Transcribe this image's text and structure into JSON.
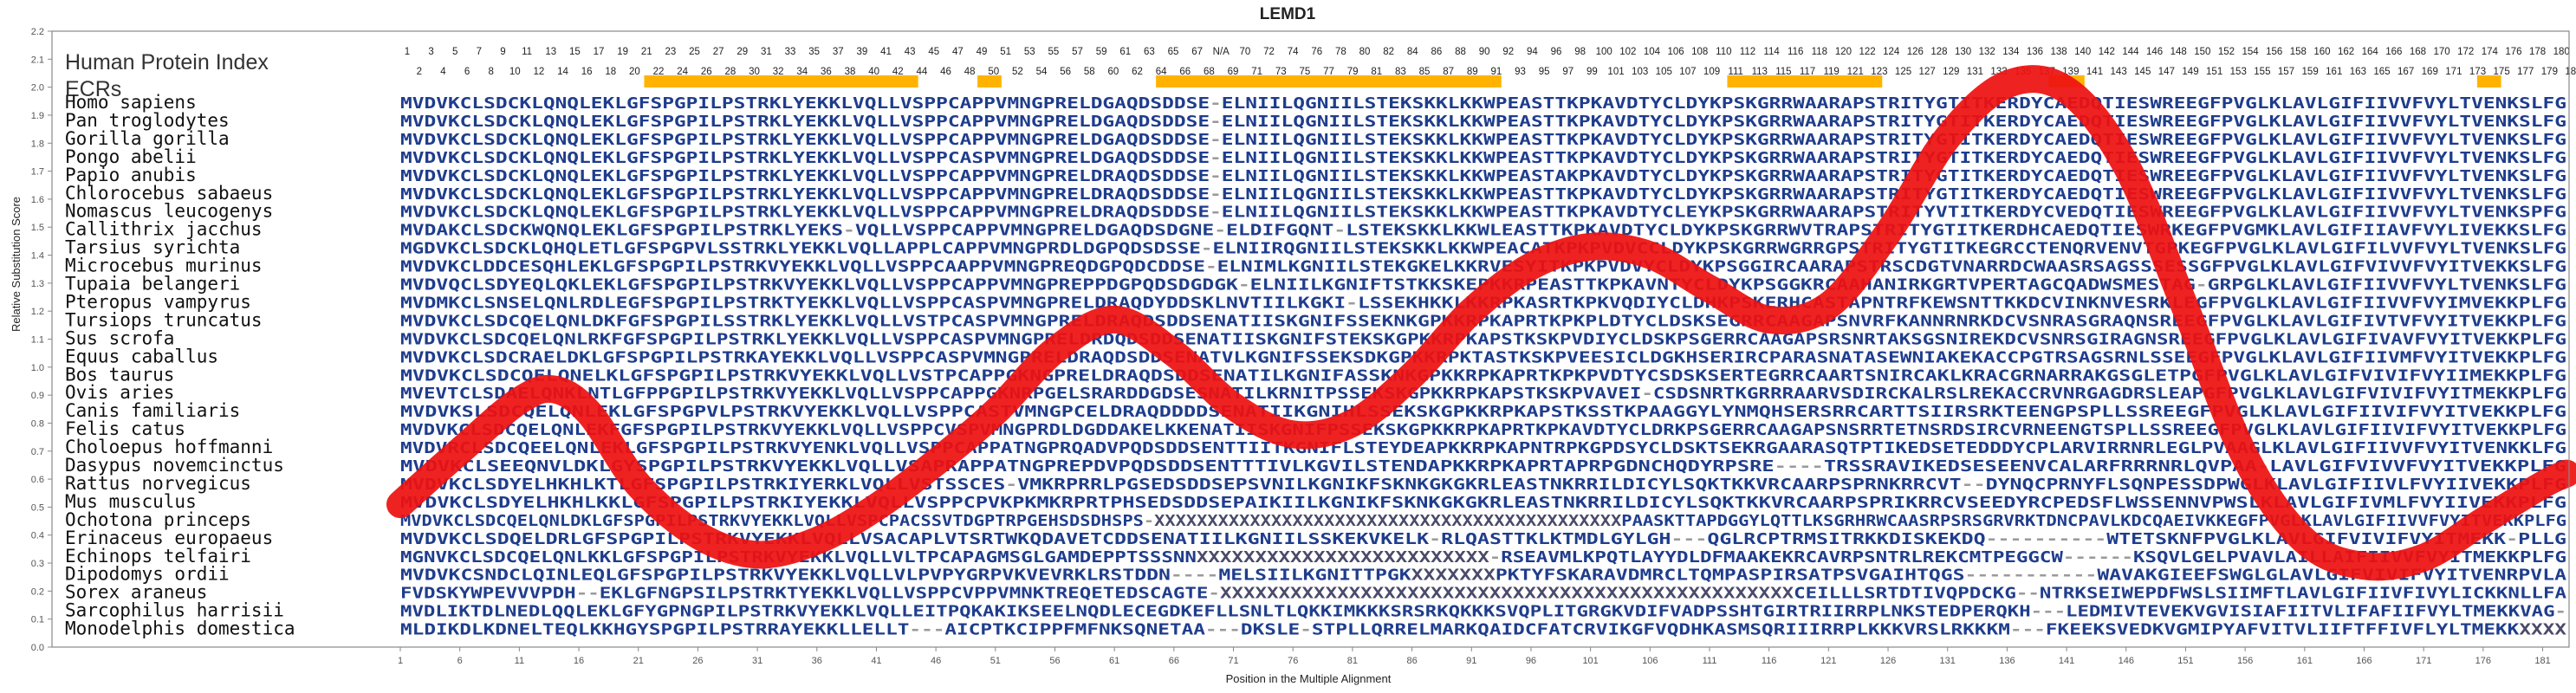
{
  "chart_data": {
    "type": "line",
    "title": "LEMD1",
    "xlabel": "Position in the Multiple Alignment",
    "ylabel": "Relative Substitution Score",
    "xlim": [
      1,
      183
    ],
    "ylim": [
      0.0,
      2.2
    ],
    "yticks": [
      "0.0",
      "0.1",
      "0.2",
      "0.3",
      "0.4",
      "0.5",
      "0.6",
      "0.7",
      "0.8",
      "0.9",
      "1.0",
      "1.1",
      "1.2",
      "1.3",
      "1.4",
      "1.5",
      "1.6",
      "1.7",
      "1.8",
      "1.9",
      "2.0",
      "2.1",
      "2.2"
    ],
    "xticks": [
      1,
      6,
      11,
      16,
      21,
      26,
      31,
      36,
      41,
      46,
      51,
      56,
      61,
      66,
      71,
      76,
      81,
      86,
      91,
      96,
      101,
      106,
      111,
      116,
      121,
      126,
      131,
      136,
      141,
      146,
      151,
      156,
      161,
      166,
      171,
      176,
      181
    ],
    "grid": false,
    "series": [
      {
        "color": "#ee1111",
        "x": [
          1,
          6,
          11,
          14,
          17,
          21,
          26,
          31,
          36,
          41,
          46,
          51,
          56,
          61,
          66,
          71,
          76,
          81,
          86,
          91,
          96,
          101,
          106,
          111,
          116,
          121,
          126,
          131,
          136,
          141,
          146,
          151,
          156,
          161,
          166,
          171,
          176,
          181,
          183
        ],
        "y": [
          0.51,
          0.7,
          0.88,
          0.92,
          0.83,
          0.58,
          0.4,
          0.33,
          0.38,
          0.5,
          0.66,
          0.84,
          1.06,
          1.17,
          1.05,
          0.86,
          0.76,
          0.8,
          0.97,
          1.2,
          1.36,
          1.43,
          1.4,
          1.28,
          1.17,
          1.22,
          1.48,
          1.82,
          2.01,
          1.99,
          1.72,
          1.21,
          0.68,
          0.38,
          0.29,
          0.32,
          0.45,
          0.58,
          0.62
        ]
      }
    ],
    "highlight_bars": [
      [
        22,
        44
      ],
      [
        50,
        51
      ],
      [
        65,
        93
      ],
      [
        113,
        125
      ],
      [
        140,
        142
      ],
      [
        176,
        177
      ]
    ],
    "highlight_color": "#ffb300"
  },
  "labels": {
    "human_protein_index": "Human Protein Index",
    "ecrs": "ECRs"
  },
  "positions_top": [
    "1",
    "3",
    "5",
    "7",
    "9",
    "11",
    "13",
    "15",
    "17",
    "19",
    "21",
    "23",
    "25",
    "27",
    "29",
    "31",
    "33",
    "35",
    "37",
    "39",
    "41",
    "43",
    "45",
    "47",
    "49",
    "51",
    "53",
    "55",
    "57",
    "59",
    "61",
    "63",
    "65",
    "67",
    "N/A",
    "70",
    "72",
    "74",
    "76",
    "78",
    "80",
    "82",
    "84",
    "86",
    "88",
    "90",
    "92",
    "94",
    "96",
    "98",
    "100",
    "102",
    "104",
    "106",
    "108",
    "110",
    "112",
    "114",
    "116",
    "118",
    "120",
    "122",
    "124",
    "126",
    "128",
    "130",
    "132",
    "134",
    "136",
    "138",
    "140",
    "142",
    "144",
    "146",
    "148",
    "150",
    "152",
    "154",
    "156",
    "158",
    "160",
    "162",
    "164",
    "166",
    "168",
    "170",
    "172",
    "174",
    "176",
    "178",
    "180"
  ],
  "positions_bottom": [
    "2",
    "4",
    "6",
    "8",
    "10",
    "12",
    "14",
    "16",
    "18",
    "20",
    "22",
    "24",
    "26",
    "28",
    "30",
    "32",
    "34",
    "36",
    "38",
    "40",
    "42",
    "44",
    "46",
    "48",
    "50",
    "52",
    "54",
    "56",
    "58",
    "60",
    "62",
    "64",
    "66",
    "68",
    "69",
    "71",
    "73",
    "75",
    "77",
    "79",
    "81",
    "83",
    "85",
    "87",
    "89",
    "91",
    "93",
    "95",
    "97",
    "99",
    "101",
    "103",
    "105",
    "107",
    "109",
    "111",
    "113",
    "115",
    "117",
    "119",
    "121",
    "123",
    "125",
    "127",
    "129",
    "131",
    "133",
    "135",
    "137",
    "139",
    "141",
    "143",
    "145",
    "147",
    "149",
    "151",
    "153",
    "155",
    "157",
    "159",
    "161",
    "163",
    "165",
    "167",
    "169",
    "171",
    "173",
    "175",
    "177",
    "179",
    "181"
  ],
  "rows": [
    {
      "species": "Homo sapiens",
      "seq": "MVDVKCLSDCKLQNQLEKLGFSPGPILPSTRKLYEKKLVQLLVSPPCAPPVMNGPRELDGAQDSDDSE-ELNIILQGNIILSTEKSKKLKKWPEASTTKPKAVDTYCLDYKPSKGRRWAARAPSTRITYGTITKERDYCAEDQTIESWREEGFPVGLKLAVLGIFIIVVFVYLTVENKSLFG"
    },
    {
      "species": "Pan troglodytes",
      "seq": "MVDVKCLSDCKLQNQLEKLGFSPGPILPSTRKLYEKKLVQLLVSPPCAPPVMNGPRELDGAQDSDDSE-ELNIILQGNIILSTEKSKKLKKWPEASTTKPKAVDTYCLDYKPSKGRRWAARAPSTRITYGTITKERDYCAEDQTIESWREEGFPVGLKLAVLGIFIIVVFVYLTVENKSLFG"
    },
    {
      "species": "Gorilla gorilla",
      "seq": "MVDVKCLSDCKLQNQLEKLGFSPGPILPSTRKLYEKKLVQLLVSPPCAPPVMNGPRELDGAQDSDDSE-ELNIILQGNIILSTEKSKKLKKWPEASTTKPKAVDTYCLDYKPSKGRRWAARAPSTRITYGTITKERDYCAEDQTIESWREEGFPVGLKLAVLGIFIIVVFVYLTVENKSLFG"
    },
    {
      "species": "Pongo abelii",
      "seq": "MVDVKCLSDCKLQNQLEKLGFSPGPILPSTRKLYEKKLVQLLVSPPCASPVMNGPRELDGAQDSDDSE-ELNIILQGNIILSTEKSKKLKKWPEASTTKPKAVDTYCLDYKPSKGRRWAARAPSTRITYGTITKERDYCAEDQTIESWREEGFPVGLKLAVLGIFIIVVFVYLTVENKSLFG"
    },
    {
      "species": "Papio anubis",
      "seq": "MVDVKCLSDCKLQNQLEKLGFSPGPILPSTRKLYEKKLVQLLVSPPCAPPVMNGPRELDRAQDSDDSE-ELNIILQGNIILSTEKSKKLKKWPEASTAKPKAVDTYCLDYKPSKGRRWAARAPSTRITYGTITKERDYCAEDQTIESWREEGFPVGLKLAVLGIFIIVVFVYLTVENKSLFG"
    },
    {
      "species": "Chlorocebus sabaeus",
      "seq": "MVDVKCLSDCKLQNQLEKLGFSPGPILPSTRKLYEKKLVQLLVSPPCAPPVMNGPRELDRAQDSDDSE-ELNIILQGNIILSTEKSKKLKKWPEASTTKPKAVDTYCLDYKPSKGRRWAARAPSTRITYGTITKERDYCAEDQTIESWREEGFPVGLKLAVLGIFIIVVFVYLTVENKSLFG"
    },
    {
      "species": "Nomascus leucogenys",
      "seq": "MVDVKCLSDCKLQNQLEKLGFSPGPILPSTRKLYEKKLVQLLVSPPCAPPVMNGPRELDRAQDSDDSE-ELNIILQGNIILSTEKSKKLKKWPEASTTKPKAVDTYCLEYKPSKGRRWAARAPSTRITYVTITKERDYCVEDQTIESWREEGFPVGLKLAVLGIFIIVVFVYLTVENKSPFG"
    },
    {
      "species": "Callithrix jacchus",
      "seq": "MVDAKCLSDCKWQNQLEKLGFSPGPILPSTRKLYEKS-VQLLVSPPCAPPVMNGPRELDGAQDSDGNE-ELDIFGQNT-LSTEKSKKLKKWLEASTTKPKAVDTYCLDYKPSKGRRWVTRAPSTRITYGTITKERDHCAEDQTIESWRKEGFPVGMKLAVLGIFIIAVFVYLIVEKKSLFG"
    },
    {
      "species": "Tarsius syrichta",
      "seq": "MGDVKCLSDCKLQHQLETLGFSPGPVLSSTRKLYEKKLVQLLAPPLCAPPVMNGPRDLDGPQDSDSSE-ELNIIRQGNIILSTEKSKKLKKWPEACATKPKPVDVCCLDYKPSKGRRWGRRGPSTRITYGTITKEGRCCTENQRVENVTGPKEGFPVGLKLAVLGIFILVVFVYLTVENKSLFG"
    },
    {
      "species": "Microcebus murinus",
      "seq": "MVDVKCLDDCESQHLEKLGFSPGPILPSTRKVYEKKLVQLLVSPPCAAPPVMNGPREQDGPQDCDDSE-ELNIMLKGNIILSTEKGKELKKRVESYITKPKPVDVYCLDYKPSGGIRCAARAPSTRSCDGTVNARRDCWAASRSAGSSSESSGFPVGLKLAVLGIFVIVVFVYITVEKKSLFG"
    },
    {
      "species": "Tupaia belangeri",
      "seq": "MVDVQCLSDYEQLQKLEKLGFSPGPILPSTRKVYEKKLVQLLVSPPCAPPVMNGPREPPDGPQDSDGDGK-ELNIILKGNIFTSTKKSKEPKKRPEASTTKPKAVNTYCLDYKPSGGKRCAAHANIRKGRTVPERTAGCQADWSMESTAG-GRPGLKLAVLGIFIIVVFVYLTVENKSLFG"
    },
    {
      "species": "Pteropus vampyrus",
      "seq": "MVDMKCLSNSELQNLRDLEGFSPGPILPSTRKTYEKKLVQLLVSPPCASPVMNGPRELDRAQDYDDSKLNVTIILKGKI-LSSEKHKKLKKRPKASRTKPKVQDIYCLDHKPSKERHCASTAPNTRFKEWSNTTKKDCVINKNVESRKLEGFPVGLKLAVLGIFIIVVFVYIMVEKKPLFG"
    },
    {
      "species": "Tursiops truncatus",
      "seq": "MVDVKCLSDCQELQNLDKFGFSPGPILSSTRKLYEKKLVQLLVSTPCASPVMNGPRELDRAQDSDDSENATIISKGNIFSSEKNKGPKKRPKAPRTKPKPLDTYCLDSKSEGRRCAAGAPSNVRFKANNRNRKDCVSNRASGRAQNSREEGFPVGLKLAVLGIFIVTVFVYITVEKKPLFG"
    },
    {
      "species": "Sus scrofa",
      "seq": "MVDVKCLSDCQELQNLRKFGFSPGPILPSTRKLYEKKLVQLLVSPPCASPVMNGPRELDRDQDSDDSENATIISKGNIFSTEKSKGPKKRPKAPSTKSKPVDIYCLDSKPSGERRCAAGAPSRSNRTAKSGSNIREKDCVSNRSGIRAGNSREEGFPVGLKLAVLGIFIVAVFVYITVEKKPLFG"
    },
    {
      "species": "Equus caballus",
      "seq": "MVDVKCLSDCRAELDKLGFSPGPILPSTRKAYEKKLVQLLVSPPCASPVMNGPRELDRAQDSDDSENATVLKGNIFSSEKSDKGPKKRPKTASTKSKPVEESICLDGKHSERIRCPARASNATASEWNIAKEKACCPGTRSAGSRNLSSEEGFPVGLKLAVLGIFIIVMFVYITVEKKPLFG"
    },
    {
      "species": "Bos taurus",
      "seq": "MVDVKCLSDCQELQNELKLGFSPGPILPSTRKVYEKKLVQLLVSTPCAPPGKNGPRELDRAQDSDDSENATILKGNIFASSKNKGPKKRPKAPRTKPKPVDTYCSDSKSERTEGRRCAARTSNIRCAKLKRACGRNARRAKGSGLETPGFPVGLKLAVLGIFVIVIFVYIIMEKKPLFG"
    },
    {
      "species": "Ovis aries",
      "seq": "MVEVTCLSDAELQNKLNTLGFPPGPILPSTRKVYEKKLVQLLVSPPCAPPGKNRPGELSRARDDGDSESNATILKRNITPSSEKSKGPKKRPKAPSTKSKPVAVEI-CSDSNRTKGRRRAARVSDIRCKALRSLREKACCRVNRGAGDRSLEAPGFPVGLKLAVLGIFVIVIFVYITMEKKPLFG"
    },
    {
      "species": "Canis familiaris",
      "seq": "MVDVKSLSDCQELQNLEKLGFSPGPVLPSTRKVYEKKLVQLLVSPPCASTVMNGPCELDRAQDDDDSENATIIKGNIHLSSEKSKGPKKRPKAPSTKSSTKPAAGGYLYNMQHSERSRRCARTTSIIRSRKTEENGPSPLLSSREEGFPVGLKLAVLGIFIIVIFVYITVEKKPLFG"
    },
    {
      "species": "Felis catus",
      "seq": "MVDVKCLSDCQELQNLEKFGFSPGPILPSTRKVYEKKLVQLLVSPPCVSPVMNGPRDLDGDDAKELKKENATIISKGNIFPSSEKSKGPKKRPKAPRTKPKAVDTYCLDRKPSGERRCAAGAPSNSRRTETNSRDSIRCVRNEENGTSPLLSSREEGFPVGLKLAVLGIFIIVIFVYITVEKKPLFG"
    },
    {
      "species": "Choloepus hoffmanni",
      "seq": "MVDVRCLSDCQEELQNLEKLGFSPGPILPSTRKVYENKLVQLLVSPPCAPPATNGPRQADVPQDSDDSENTTIITKGNIFLSTEYDEAPKKRPKAPNTRPKGPDSYCLDSKTSEKRGAARASQTPTIKEDSETEDDDYCPLARVIRRNRLEGLPVAAGLKLAVLGIFIIVVFVYITVENKKLFG"
    },
    {
      "species": "Dasypus novemcinctus",
      "seq": "MVDVKCLSEEQNVLDKLGYSPGPILPSTRKVYEKKLVQLLVSAPRAPPATNGPREPDVPQDSDDSENTTTIVLKGVILSTENDAPKKRPKAPRTAPRPGDNCHQDYRPSRE----TRSSRAVIKEDSESEENVCALARFRRRNRLQVPAA-LAVLGIFVIVVFVYITVEKKPLFG"
    },
    {
      "species": "Rattus norvegicus",
      "seq": "MVDVKCLSDYELHKHLKTLGFSPGPILPSTRKIYERKLVQLLVSTSSCES-VMKRPRRLPGSEDSDDSEPSVNILKGNIKFSKNKGKGKRLEASTNKRRILDICYLSQKTKKVRCAARPSPRNKRRCVT--DYNQCPRNYFLSQNPESSDPWGLKLAVLGIFIIVLFVYIIVEKKPLFG"
    },
    {
      "species": "Mus musculus",
      "seq": "MVDVKCLSDYELHKHLKKLGFSPGPILPSTRKIYEKKLVQLLVSPPCPVKPKMKRPRTPHSEDSDDSEPAIKIILKGNIKFSKNKGKGKRLEASTNKRRILDICYLSQKTKKVRCAARPSPRIKRRCVSEEDYRCPEDSFLWSSENNVPWSLKLAVLGIFIVMLFVYIIVEKKPLFG"
    },
    {
      "species": "Ochotona princeps",
      "seq": "MVDVKCLSDCQELQNLDKLGFSPGPILPSTRKVYEKKLVQLLVSPCPACSSVTDGPTRPGEHSDSDHSPS-XXXXXXXXXXXXXXXXXXXXXXXXXXXXXXXXXXXXXXXXXXXXPAASKTTAPDGGYLQTTLKSGRHRWCAASRPSRSGRVRKTDNCPAVLKDCQAEIVKKEGFPVGLKLAVLGIFIIVVFVYITVEKKPLFG"
    },
    {
      "species": "Erinaceus europaeus",
      "seq": "MVDVKCLSDQELDRLGFSPGPILPSTRKVYEKKLVQLLVSACAPLVTSRTWKQDAVETCDDSENATIILKGNIILSSKEKVKELK-RLQASTTKLKTMDLGYLGH---QGLRCPTRMSITRKKDISKEKDQ----------WTETSKNFPVGLKLAVLGIFVIVIFVYITMEKK-PLLG"
    },
    {
      "species": "Echinops telfairi",
      "seq": "MGNVKCLSDCQELQNLKKLGFSPGPILPSTRKVYEKKLVQLLVLTPCAPAGMSGLGAMDEPPTSSSNNXXXXXXXXXXXXXXXXXXXXXXXXX-RSEAVMLKPQTLAYYDLDFMAAKEKRCAVRPSNTRLREKCMTPEGGCW------KSQVLGELPVAVLAILLAIFIIVVFVYITMEKKPLFG"
    },
    {
      "species": "Dipodomys ordii",
      "seq": "MVDVKCSNDCLQINLEQLGFSPGPILPSTRKVYEKKLVQLLVLPVPYGRPVKVEVRKLRSTDDN----MELSIILKGNITTPGKXXXXXXXPKTYFSKARAVDMRCLTQMPASPIRSATPSVGAIHTQGS-----------WAVAKGIEEFSWGLGLAVLGIFVIVIFVYITVENRPVLA"
    },
    {
      "species": "Sorex araneus",
      "seq": "FVDSKYWPEVVVPDH--EKLGFNGPSILPSTRKTYEKKLVQLLVSPPCVPPVMNKTREQETEDSCAGTE-XXXXXXXXXXXXXXXXXXXXXXXXXXXXXXXXXXXXXXXXXXXXXXXXXCEILLLSRTDTIVQPDCKG--NTRKSEIWEPDFWSLSIIMFTLAVLGIFIIVFIVYLICKKNLLFA"
    },
    {
      "species": "Sarcophilus harrisii",
      "seq": "MVDLIKTDLNEDLQQLEKLGFYGPNGPILPSTRKVYEKKLVQLLEITPQKAKIKSEELNQDLECEGDKEFLLSNLTLQKKIMKKKSRSRKQKKKSVQPLITGRGKVDIFVADPSSHTGIRTRIIRRPLNKSTEDPERQKH---LEDMIVTEVEKVGVISIAFIITVLIFAFIIFVYLTMEKKVAG-"
    },
    {
      "species": "Monodelphis domestica",
      "seq": "MLDIKDLKDNELTEQLKKHGYSPGPILPSTRRAYEKKLLELLT---AICPTKCIPPFMFNKSQNETAA---DKSLE-STPLLQRRELMARKQAIDCFATCRVIKGFVQDHKASMSQRIIIRRPLKKKVRSLRKKKM---FKEEKSVEDKVGMIPYAFVITVLIIFTFFIVFLYLTMEKKXXXX"
    }
  ]
}
